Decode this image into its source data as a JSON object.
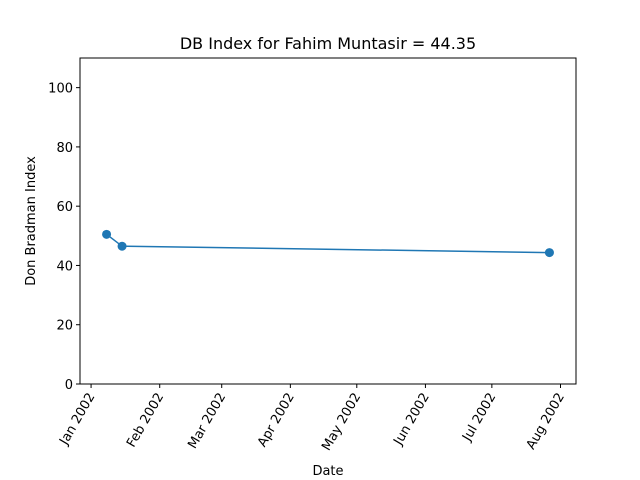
{
  "chart_data": {
    "type": "line",
    "title": "DB Index for Fahim Muntasir = 44.35",
    "xlabel": "Date",
    "ylabel": "Don Bradman Index",
    "x_ticks": [
      "Jan 2002",
      "Feb 2002",
      "Mar 2002",
      "Apr 2002",
      "May 2002",
      "Jun 2002",
      "Jul 2002",
      "Aug 2002"
    ],
    "x_tick_dates": [
      "2002-01-01",
      "2002-02-01",
      "2002-03-01",
      "2002-04-01",
      "2002-05-01",
      "2002-06-01",
      "2002-07-01",
      "2002-08-01"
    ],
    "xlim": [
      "2001-12-27",
      "2002-08-08"
    ],
    "ylim": [
      0,
      110
    ],
    "y_ticks": [
      0,
      20,
      40,
      60,
      80,
      100
    ],
    "grid": false,
    "series": [
      {
        "color": "#1f77b4",
        "marker": "circle",
        "x": [
          "2002-01-08",
          "2002-01-15",
          "2002-07-27"
        ],
        "y": [
          50.5,
          46.5,
          44.35
        ]
      }
    ]
  }
}
